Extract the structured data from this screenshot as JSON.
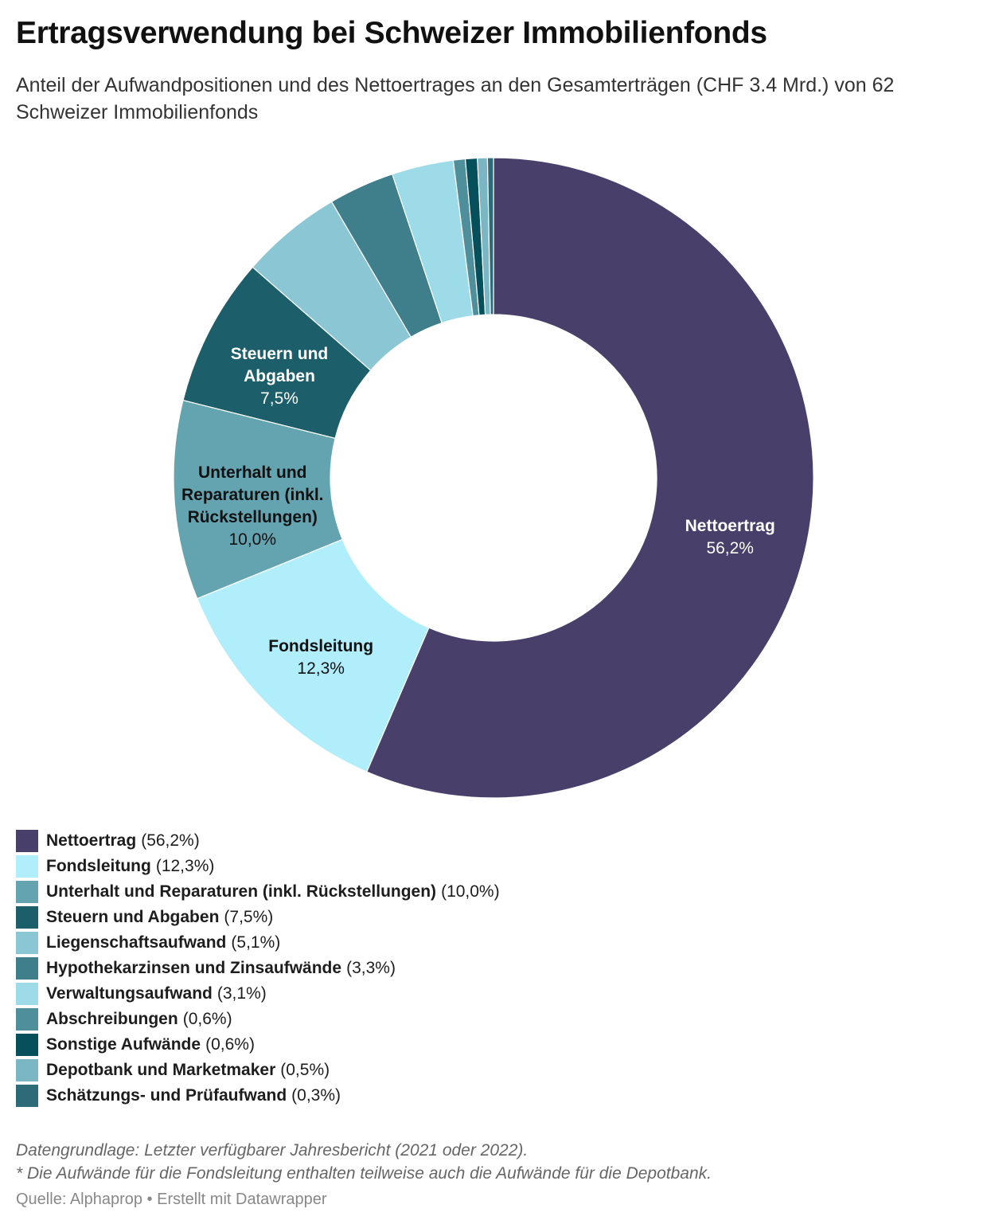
{
  "chart_data": {
    "type": "donut",
    "title": "Ertragsverwendung bei Schweizer Immobilienfonds",
    "subtitle": "Anteil der Aufwandpositionen und des Nettoertrages an den Gesamterträgen (CHF 3.4 Mrd.) von 62 Schweizer Immobilienfonds",
    "categories": [
      "Nettoertrag",
      "Fondsleitung",
      "Unterhalt und Reparaturen (inkl. Rückstellungen)",
      "Steuern und Abgaben",
      "Liegenschaftsaufwand",
      "Hypothekarzinsen und Zinsaufwände",
      "Verwaltungsaufwand",
      "Abschreibungen",
      "Sonstige Aufwände",
      "Depotbank und Marketmaker",
      "Schätzungs- und Prüfaufwand"
    ],
    "values": [
      56.2,
      12.3,
      10.0,
      7.5,
      5.1,
      3.3,
      3.1,
      0.6,
      0.6,
      0.5,
      0.3
    ],
    "value_labels": [
      "56,2%",
      "12,3%",
      "10,0%",
      "7,5%",
      "5,1%",
      "3,3%",
      "3,1%",
      "0,6%",
      "0,6%",
      "0,5%",
      "0,3%"
    ],
    "colors": [
      "#48406b",
      "#b0eefc",
      "#64a3b0",
      "#1c5f6b",
      "#8bc6d5",
      "#3f7e8b",
      "#9edbe9",
      "#4f8f9c",
      "#06505c",
      "#7ab6c4",
      "#2e6b78"
    ],
    "notes": [
      "Datengrundlage: Letzter verfügbarer Jahresbericht (2021 oder 2022).",
      "* Die Aufwände für die Fondsleitung enthalten teilweise auch die Aufwände für die Depotbank."
    ],
    "source": "Quelle: Alphaprop • Erstellt mit Datawrapper"
  }
}
